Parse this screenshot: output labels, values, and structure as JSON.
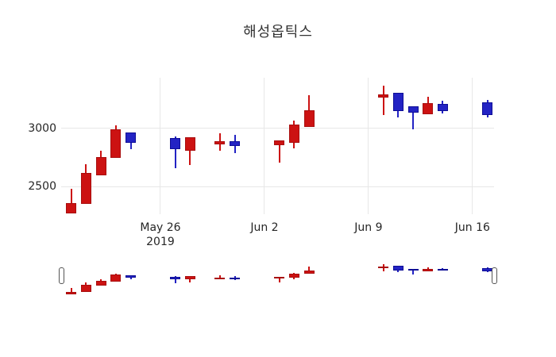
{
  "title": "해성옵틱스",
  "colors": {
    "up_fill": "#CC1212",
    "up_line": "#A80E0E",
    "down_fill": "#2323C4",
    "down_line": "#0E0E96",
    "grid": "#E7E7E7",
    "text": "#262626",
    "background": "#FFFFFF",
    "handle_fill": "#FFFFFF",
    "handle_border": "#555555"
  },
  "y_axis": {
    "range": [
      2265,
      3435
    ],
    "ticks": [
      {
        "label": "3000",
        "value": 3000
      },
      {
        "label": "2500",
        "value": 2500
      }
    ]
  },
  "x_axis": {
    "range_t": [
      -0.68,
      28.45
    ],
    "ticks": [
      {
        "label": "May 26",
        "sub": "2019",
        "t": 6
      },
      {
        "label": "Jun 2",
        "sub": "",
        "t": 13
      },
      {
        "label": "Jun 9",
        "sub": "",
        "t": 20
      },
      {
        "label": "Jun 16",
        "sub": "",
        "t": 27
      }
    ]
  },
  "chart_data": {
    "type": "candlestick",
    "title": "해성옵틱스",
    "increasing_color": "#CC1212",
    "decreasing_color": "#2323C4",
    "has_rangeslider": true,
    "candles": [
      {
        "date": "2019-05-20",
        "t": 0,
        "open": 2270,
        "high": 2485,
        "low": 2270,
        "close": 2360
      },
      {
        "date": "2019-05-21",
        "t": 1,
        "open": 2350,
        "high": 2695,
        "low": 2350,
        "close": 2620
      },
      {
        "date": "2019-05-22",
        "t": 2,
        "open": 2595,
        "high": 2810,
        "low": 2595,
        "close": 2755
      },
      {
        "date": "2019-05-23",
        "t": 3,
        "open": 2745,
        "high": 3025,
        "low": 2745,
        "close": 2990
      },
      {
        "date": "2019-05-24",
        "t": 4,
        "open": 2965,
        "high": 2965,
        "low": 2820,
        "close": 2880
      },
      {
        "date": "2019-05-27",
        "t": 7,
        "open": 2920,
        "high": 2930,
        "low": 2660,
        "close": 2820
      },
      {
        "date": "2019-05-28",
        "t": 8,
        "open": 2810,
        "high": 2925,
        "low": 2690,
        "close": 2925
      },
      {
        "date": "2019-05-30",
        "t": 10,
        "open": 2865,
        "high": 2960,
        "low": 2810,
        "close": 2890
      },
      {
        "date": "2019-05-31",
        "t": 11,
        "open": 2890,
        "high": 2945,
        "low": 2790,
        "close": 2850
      },
      {
        "date": "2019-06-03",
        "t": 14,
        "open": 2855,
        "high": 2900,
        "low": 2710,
        "close": 2900
      },
      {
        "date": "2019-06-04",
        "t": 15,
        "open": 2880,
        "high": 3065,
        "low": 2830,
        "close": 3035
      },
      {
        "date": "2019-06-05",
        "t": 16,
        "open": 3015,
        "high": 3285,
        "low": 3015,
        "close": 3155
      },
      {
        "date": "2019-06-10",
        "t": 21,
        "open": 3265,
        "high": 3365,
        "low": 3115,
        "close": 3295
      },
      {
        "date": "2019-06-11",
        "t": 22,
        "open": 3305,
        "high": 3305,
        "low": 3095,
        "close": 3150
      },
      {
        "date": "2019-06-12",
        "t": 23,
        "open": 3190,
        "high": 3190,
        "low": 2995,
        "close": 3135
      },
      {
        "date": "2019-06-13",
        "t": 24,
        "open": 3120,
        "high": 3270,
        "low": 3120,
        "close": 3215
      },
      {
        "date": "2019-06-14",
        "t": 25,
        "open": 3210,
        "high": 3235,
        "low": 3130,
        "close": 3150
      },
      {
        "date": "2019-06-17",
        "t": 28,
        "open": 3225,
        "high": 3245,
        "low": 3095,
        "close": 3115
      }
    ]
  }
}
